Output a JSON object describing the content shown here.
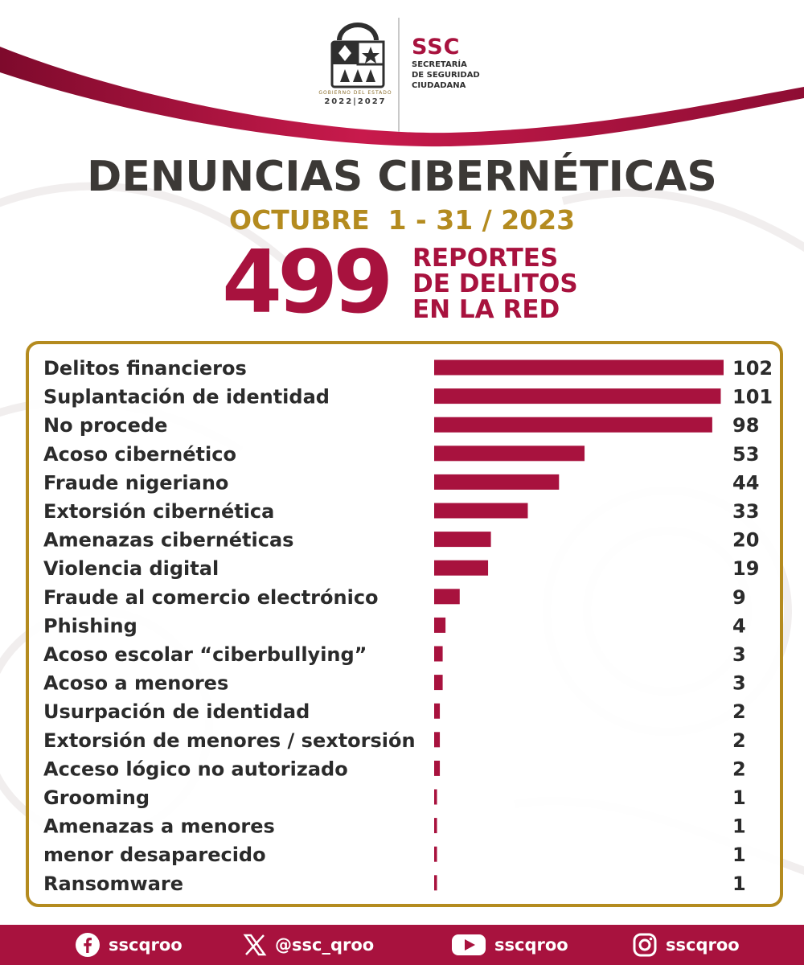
{
  "header": {
    "logo_caption": "GOBIERNO DEL ESTADO",
    "logo_years": "2022|2027",
    "org_short": "SSC",
    "org_full_line1": "SECRETARÍA",
    "org_full_line2": "DE SEGURIDAD",
    "org_full_line3": "CIUDADANA"
  },
  "title": "DENUNCIAS CIBERNÉTICAS",
  "date_range": "OCTUBRE  1 - 31 / 2023",
  "total": {
    "value": "499",
    "label_line1": "REPORTES",
    "label_line2": "DE DELITOS",
    "label_line3": "EN LA RED"
  },
  "chart_data": {
    "type": "bar",
    "orientation": "horizontal",
    "categories": [
      "Delitos financieros",
      "Suplantación de identidad",
      "No procede",
      "Acoso cibernético",
      "Fraude nigeriano",
      "Extorsión cibernética",
      "Amenazas cibernéticas",
      "Violencia digital",
      "Fraude al comercio electrónico",
      "Phishing",
      "Acoso escolar “ciberbullying”",
      "Acoso a menores",
      "Usurpación de identidad",
      "Extorsión de menores / sextorsión",
      "Acceso lógico no autorizado",
      "Grooming",
      "Amenazas a menores",
      "menor desaparecido",
      "Ransomware"
    ],
    "values": [
      102,
      101,
      98,
      53,
      44,
      33,
      20,
      19,
      9,
      4,
      3,
      3,
      2,
      2,
      2,
      1,
      1,
      1,
      1
    ],
    "bar_color": "#a8123e",
    "xlim": [
      0,
      102
    ]
  },
  "footer": {
    "facebook": "sscqroo",
    "x": "@ssc_qroo",
    "youtube": "sscqroo",
    "instagram": "sscqroo"
  },
  "colors": {
    "brand": "#a8123e",
    "gold": "#b48b1f",
    "title": "#3c3936"
  },
  "icons": [
    "coat-of-arms-icon",
    "facebook-icon",
    "x-icon",
    "youtube-icon",
    "instagram-icon"
  ]
}
